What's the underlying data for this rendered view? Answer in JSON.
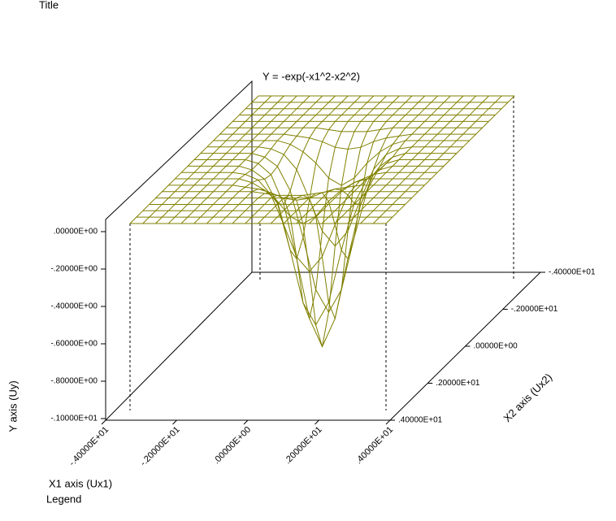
{
  "chart_data": {
    "type": "surface",
    "title": "Title",
    "subtitle": "Y = -exp(-x1^2-x2^2)",
    "x_label": "X1 axis (Ux1)",
    "x2_label": "X2 axis (Ux2)",
    "y_label": "Y axis (Uy)",
    "legend": "Legend",
    "color": "#808000",
    "x1": [
      -4,
      -3.6,
      -3.2,
      -2.8,
      -2.4,
      -2,
      -1.6,
      -1.2,
      -0.8,
      -0.4,
      0,
      0.4,
      0.8,
      1.2,
      1.6,
      2,
      2.4,
      2.8,
      3.2,
      3.6,
      4
    ],
    "x2": [
      -4,
      -3.6,
      -3.2,
      -2.8,
      -2.4,
      -2,
      -1.6,
      -1.2,
      -0.8,
      -0.4,
      0,
      0.4,
      0.8,
      1.2,
      1.6,
      2,
      2.4,
      2.8,
      3.2,
      3.6,
      4
    ],
    "z": [
      [
        0,
        0,
        0,
        0,
        0,
        0,
        0,
        0,
        0,
        0,
        0,
        0,
        0,
        0,
        0,
        0,
        0,
        0,
        0,
        0,
        0
      ],
      [
        0,
        0,
        0,
        0,
        0,
        0,
        0,
        0,
        0,
        0,
        0,
        0,
        0,
        0,
        0,
        0,
        0,
        0,
        0,
        0,
        0
      ],
      [
        0,
        0,
        0,
        0,
        0,
        0,
        0,
        0,
        0,
        0,
        0,
        0,
        0,
        0,
        0,
        0,
        0,
        0,
        0,
        0,
        0
      ],
      [
        0,
        0,
        0,
        0,
        0,
        0,
        0,
        0,
        0,
        0,
        0,
        0,
        0,
        0,
        0,
        0,
        0,
        0,
        0,
        0,
        0
      ],
      [
        0,
        0,
        0,
        0,
        0,
        0,
        0,
        0,
        0,
        0,
        0,
        0,
        0,
        0,
        0,
        0,
        0,
        0,
        0,
        0,
        0
      ],
      [
        0,
        0,
        0,
        0,
        0,
        0,
        0,
        0,
        -0.01,
        -0.02,
        -0.02,
        -0.02,
        -0.01,
        0,
        0,
        0,
        0,
        0,
        0,
        0,
        0
      ],
      [
        0,
        0,
        0,
        0,
        0,
        0,
        -0.01,
        -0.02,
        -0.04,
        -0.07,
        -0.08,
        -0.07,
        -0.04,
        -0.02,
        -0.01,
        0,
        0,
        0,
        0,
        0,
        0
      ],
      [
        0,
        0,
        0,
        0,
        0,
        0,
        -0.02,
        -0.06,
        -0.12,
        -0.2,
        -0.24,
        -0.2,
        -0.12,
        -0.06,
        -0.02,
        0,
        0,
        0,
        0,
        0,
        0
      ],
      [
        0,
        0,
        0,
        0,
        0,
        -0.01,
        -0.04,
        -0.12,
        -0.28,
        -0.45,
        -0.53,
        -0.45,
        -0.28,
        -0.12,
        -0.04,
        -0.01,
        0,
        0,
        0,
        0,
        0
      ],
      [
        0,
        0,
        0,
        0,
        0,
        -0.02,
        -0.07,
        -0.2,
        -0.45,
        -0.73,
        -0.85,
        -0.73,
        -0.45,
        -0.2,
        -0.07,
        -0.02,
        0,
        0,
        0,
        0,
        0
      ],
      [
        0,
        0,
        0,
        0,
        0,
        -0.02,
        -0.08,
        -0.24,
        -0.53,
        -0.85,
        -1,
        -0.85,
        -0.53,
        -0.24,
        -0.08,
        -0.02,
        0,
        0,
        0,
        0,
        0
      ],
      [
        0,
        0,
        0,
        0,
        0,
        -0.02,
        -0.07,
        -0.2,
        -0.45,
        -0.73,
        -0.85,
        -0.73,
        -0.45,
        -0.2,
        -0.07,
        -0.02,
        0,
        0,
        0,
        0,
        0
      ],
      [
        0,
        0,
        0,
        0,
        0,
        -0.01,
        -0.04,
        -0.12,
        -0.28,
        -0.45,
        -0.53,
        -0.45,
        -0.28,
        -0.12,
        -0.04,
        -0.01,
        0,
        0,
        0,
        0,
        0
      ],
      [
        0,
        0,
        0,
        0,
        0,
        0,
        -0.02,
        -0.06,
        -0.12,
        -0.2,
        -0.24,
        -0.2,
        -0.12,
        -0.06,
        -0.02,
        0,
        0,
        0,
        0,
        0,
        0
      ],
      [
        0,
        0,
        0,
        0,
        0,
        0,
        -0.01,
        -0.02,
        -0.04,
        -0.07,
        -0.08,
        -0.07,
        -0.04,
        -0.02,
        -0.01,
        0,
        0,
        0,
        0,
        0,
        0
      ],
      [
        0,
        0,
        0,
        0,
        0,
        0,
        0,
        0,
        -0.01,
        -0.02,
        -0.02,
        -0.02,
        -0.01,
        0,
        0,
        0,
        0,
        0,
        0,
        0,
        0
      ],
      [
        0,
        0,
        0,
        0,
        0,
        0,
        0,
        0,
        0,
        0,
        0,
        0,
        0,
        0,
        0,
        0,
        0,
        0,
        0,
        0,
        0
      ],
      [
        0,
        0,
        0,
        0,
        0,
        0,
        0,
        0,
        0,
        0,
        0,
        0,
        0,
        0,
        0,
        0,
        0,
        0,
        0,
        0,
        0
      ],
      [
        0,
        0,
        0,
        0,
        0,
        0,
        0,
        0,
        0,
        0,
        0,
        0,
        0,
        0,
        0,
        0,
        0,
        0,
        0,
        0,
        0
      ],
      [
        0,
        0,
        0,
        0,
        0,
        0,
        0,
        0,
        0,
        0,
        0,
        0,
        0,
        0,
        0,
        0,
        0,
        0,
        0,
        0,
        0
      ],
      [
        0,
        0,
        0,
        0,
        0,
        0,
        0,
        0,
        0,
        0,
        0,
        0,
        0,
        0,
        0,
        0,
        0,
        0,
        0,
        0,
        0
      ]
    ],
    "xlim": [
      -4,
      4
    ],
    "x2lim": [
      -4,
      4
    ],
    "ylim": [
      -1,
      0
    ],
    "xticks": [
      {
        "value": -4,
        "label": "-.40000E+01"
      },
      {
        "value": -2,
        "label": "-.20000E+01"
      },
      {
        "value": 0,
        "label": ".00000E+00"
      },
      {
        "value": 2,
        "label": ".20000E+01"
      },
      {
        "value": 4,
        "label": ".40000E+01"
      }
    ],
    "x2ticks": [
      {
        "value": -4,
        "label": "-.40000E+01"
      },
      {
        "value": -2,
        "label": "-.20000E+01"
      },
      {
        "value": 0,
        "label": ".00000E+00"
      },
      {
        "value": 2,
        "label": ".20000E+01"
      },
      {
        "value": 4,
        "label": ".40000E+01"
      }
    ],
    "yticks": [
      {
        "value": 0,
        "label": ".00000E+00"
      },
      {
        "value": -0.2,
        "label": "-.20000E+00"
      },
      {
        "value": -0.4,
        "label": "-.40000E+00"
      },
      {
        "value": -0.6,
        "label": "-.60000E+00"
      },
      {
        "value": -0.8,
        "label": "-.80000E+00"
      },
      {
        "value": -1,
        "label": "-.10000E+01"
      }
    ]
  }
}
